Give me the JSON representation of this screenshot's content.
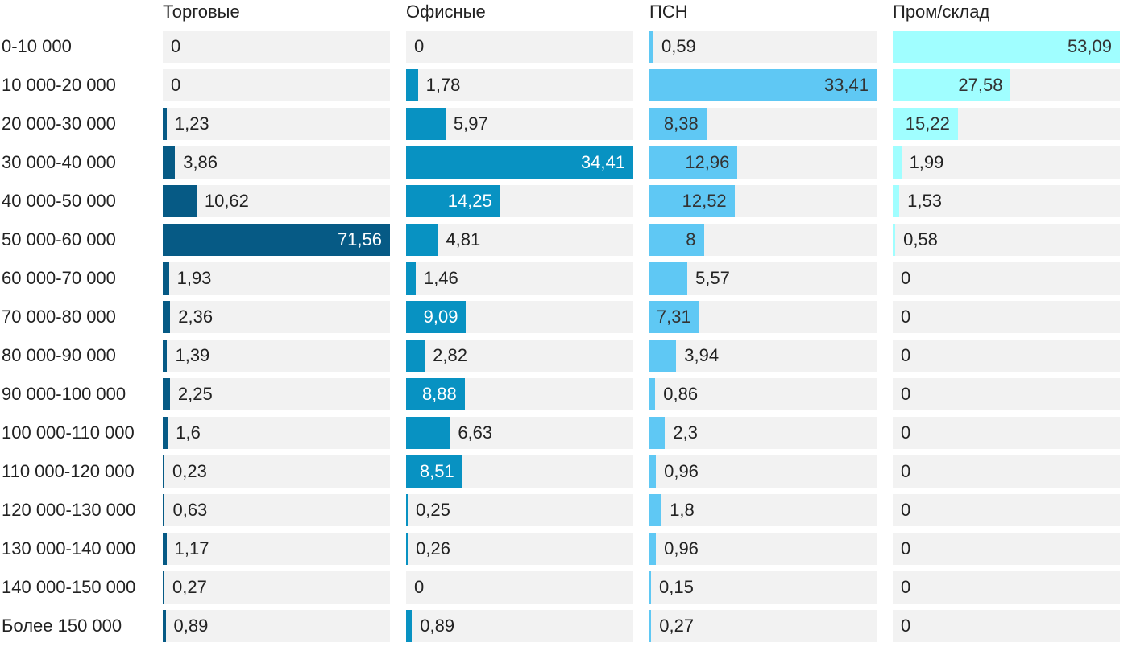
{
  "chart_data": {
    "type": "bar",
    "orientation": "horizontal",
    "layout": "small-multiples",
    "title": "",
    "xlabel": "",
    "ylabel": "",
    "categories": [
      "0-10 000",
      "10 000-20 000",
      "20 000-30 000",
      "30 000-40 000",
      "40 000-50 000",
      "50 000-60 000",
      "60 000-70 000",
      "70 000-80 000",
      "80 000-90 000",
      "90 000-100 000",
      "100 000-110 000",
      "110 000-120 000",
      "120 000-130 000",
      "130 000-140 000",
      "140 000-150 000",
      "Более 150 000"
    ],
    "series": [
      {
        "name": "Торговые",
        "color": "#065a85",
        "label_color": "#ffffff",
        "xlim": [
          0,
          71.56
        ],
        "values": [
          0,
          0,
          1.23,
          3.86,
          10.62,
          71.56,
          1.93,
          2.36,
          1.39,
          2.25,
          1.6,
          0.23,
          0.63,
          1.17,
          0.27,
          0.89
        ],
        "labels": [
          "0",
          "0",
          "1,23",
          "3,86",
          "10,62",
          "71,56",
          "1,93",
          "2,36",
          "1,39",
          "2,25",
          "1,6",
          "0,23",
          "0,63",
          "1,17",
          "0,27",
          "0,89"
        ]
      },
      {
        "name": "Офисные",
        "color": "#0892c2",
        "label_color": "#ffffff",
        "xlim": [
          0,
          34.41
        ],
        "values": [
          0,
          1.78,
          5.97,
          34.41,
          14.25,
          4.81,
          1.46,
          9.09,
          2.82,
          8.88,
          6.63,
          8.51,
          0.25,
          0.26,
          0,
          0.89
        ],
        "labels": [
          "0",
          "1,78",
          "5,97",
          "34,41",
          "14,25",
          "4,81",
          "1,46",
          "9,09",
          "2,82",
          "8,88",
          "6,63",
          "8,51",
          "0,25",
          "0,26",
          "0",
          "0,89"
        ]
      },
      {
        "name": "ПСН",
        "color": "#5fc8f4",
        "label_color": "#333333",
        "xlim": [
          0,
          33.41
        ],
        "values": [
          0.59,
          33.41,
          8.38,
          12.96,
          12.52,
          8,
          5.57,
          7.31,
          3.94,
          0.86,
          2.3,
          0.96,
          1.8,
          0.96,
          0.15,
          0.27
        ],
        "labels": [
          "0,59",
          "33,41",
          "8,38",
          "12,96",
          "12,52",
          "8",
          "5,57",
          "7,31",
          "3,94",
          "0,86",
          "2,3",
          "0,96",
          "1,8",
          "0,96",
          "0,15",
          "0,27"
        ]
      },
      {
        "name": "Пром/склад",
        "color": "#a0feff",
        "label_color": "#333333",
        "xlim": [
          0,
          53.09
        ],
        "values": [
          53.09,
          27.58,
          15.22,
          1.99,
          1.53,
          0.58,
          0,
          0,
          0,
          0,
          0,
          0,
          0,
          0,
          0,
          0
        ],
        "labels": [
          "53,09",
          "27,58",
          "15,22",
          "1,99",
          "1,53",
          "0,58",
          "0",
          "0",
          "0",
          "0",
          "0",
          "0",
          "0",
          "0",
          "0",
          "0"
        ]
      }
    ],
    "track_color": "#f2f2f2",
    "grid": false,
    "legend": "none"
  }
}
